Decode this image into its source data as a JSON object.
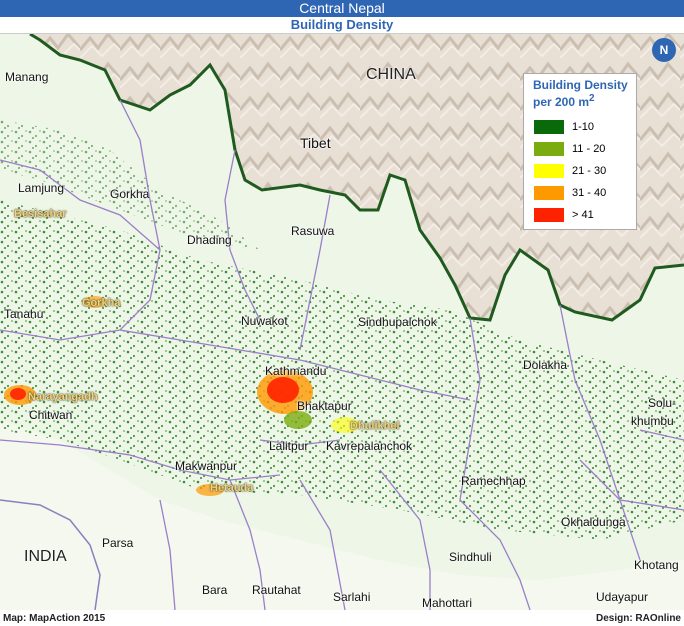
{
  "header": {
    "title": "Central Nepal",
    "subtitle": "Building Density"
  },
  "legend": {
    "title_line1": "Building Density",
    "title_line2": "per 200 m",
    "title_sup": "2",
    "classes": [
      {
        "label": "1-10",
        "color": "#0a6a0a"
      },
      {
        "label": "11 - 20",
        "color": "#7aac10"
      },
      {
        "label": "21 - 30",
        "color": "#ffff00"
      },
      {
        "label": "31 - 40",
        "color": "#ff9900"
      },
      {
        "label": "> 41",
        "color": "#ff2200"
      }
    ]
  },
  "north_arrow": {
    "letter": "N"
  },
  "labels": {
    "china": "CHINA",
    "tibet": "Tibet",
    "india": "INDIA",
    "manang": "Manang",
    "lamjung": "Lamjung",
    "besisahar": "Besisahar",
    "gorkha": "Gorkha",
    "gorkha_town": "Gorkha",
    "dhading": "Dhading",
    "rasuwa": "Rasuwa",
    "tanahu": "Tanahu",
    "nuwakot": "Nuwakot",
    "sindhupalchok": "Sindhupalchok",
    "dolakha": "Dolakha",
    "narayangadh": "Narayangadh",
    "chitwan": "Chitwan",
    "kathmandu": "Kathmandu",
    "bhaktapur": "Bhaktapur",
    "dhulikhel": "Dhulikhel",
    "lalitpur": "Lalitpur",
    "kavrepalanchok": "Kavrepalanchok",
    "solu": "Solu-",
    "khumbu": "khumbu",
    "makwanpur": "Makwanpur",
    "hetauda": "Hetauda",
    "ramechhap": "Ramechhap",
    "okhaldunga": "Okhaldunga",
    "parsa": "Parsa",
    "sindhuli": "Sindhuli",
    "khotang": "Khotang",
    "bara": "Bara",
    "rautahat": "Rautahat",
    "sarlahi": "Sarlahi",
    "mahottari": "Mahottari",
    "udayapur": "Udayapur"
  },
  "footer": {
    "left": "Map: MapAction 2015",
    "right": "Design: RAOnline"
  }
}
